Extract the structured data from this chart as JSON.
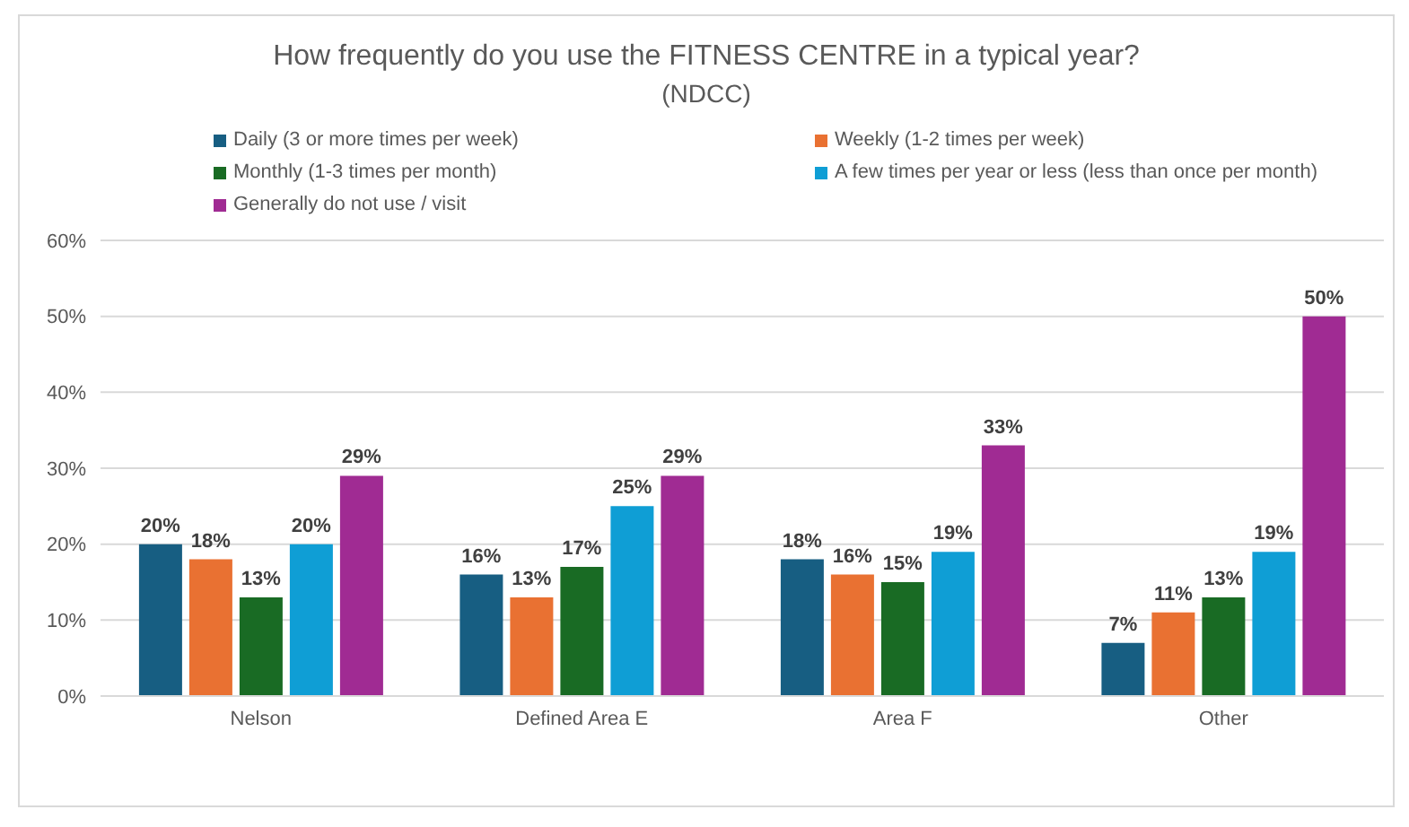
{
  "chart_data": {
    "type": "bar",
    "title": "How frequently do you use the FITNESS CENTRE in a typical year?",
    "subtitle": "(NDCC)",
    "categories": [
      "Nelson",
      "Defined Area E",
      "Area F",
      "Other"
    ],
    "series": [
      {
        "name": "Daily (3 or more times per week)",
        "color": "#175e82",
        "values": [
          20,
          16,
          18,
          7
        ],
        "value_labels": [
          "20%",
          "16%",
          "18%",
          "7%"
        ]
      },
      {
        "name": "Weekly (1-2 times per week)",
        "color": "#e97132",
        "values": [
          18,
          13,
          16,
          11
        ],
        "value_labels": [
          "18%",
          "13%",
          "16%",
          "11%"
        ]
      },
      {
        "name": "Monthly (1-3 times per month)",
        "color": "#196b24",
        "values": [
          13,
          17,
          15,
          13
        ],
        "value_labels": [
          "13%",
          "17%",
          "15%",
          "13%"
        ]
      },
      {
        "name": "A few times per year or less (less than once per month)",
        "color": "#0f9ed5",
        "values": [
          20,
          25,
          19,
          19
        ],
        "value_labels": [
          "20%",
          "25%",
          "19%",
          "19%"
        ]
      },
      {
        "name": "Generally do not use / visit",
        "color": "#a02b93",
        "values": [
          29,
          29,
          33,
          50
        ],
        "value_labels": [
          "29%",
          "29%",
          "33%",
          "50%"
        ]
      }
    ],
    "ylim": [
      0,
      60
    ],
    "yticks": [
      {
        "value": 0,
        "label": "0%"
      },
      {
        "value": 10,
        "label": "10%"
      },
      {
        "value": 20,
        "label": "20%"
      },
      {
        "value": 30,
        "label": "30%"
      },
      {
        "value": 40,
        "label": "40%"
      },
      {
        "value": 50,
        "label": "50%"
      },
      {
        "value": 60,
        "label": "60%"
      }
    ],
    "grid": "y",
    "legend": "top"
  }
}
